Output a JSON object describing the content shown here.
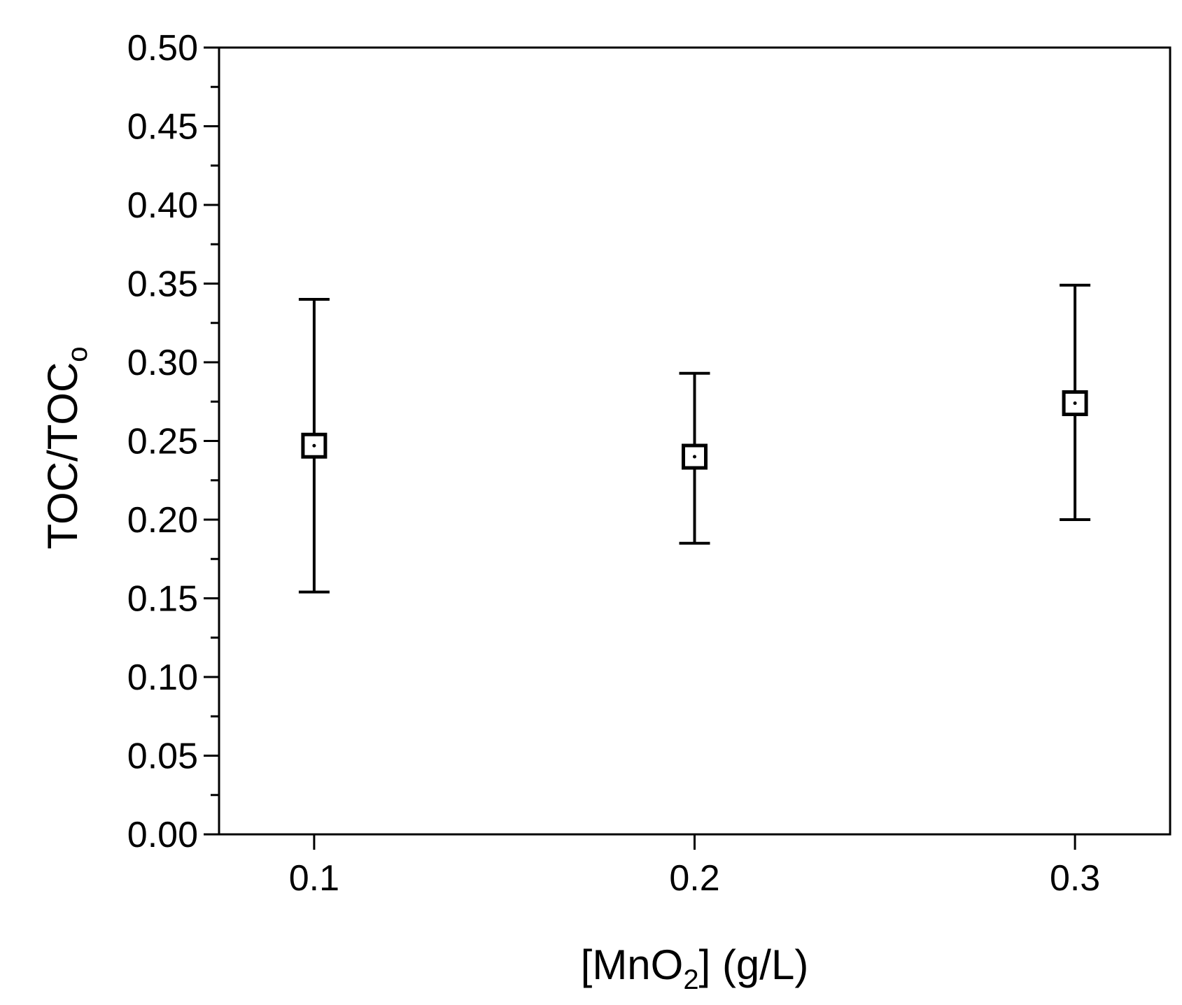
{
  "chart_data": {
    "type": "scatter",
    "title": "",
    "xlabel": {
      "main": "[MnO",
      "sub": "2",
      "rest": "] (g/L)"
    },
    "ylabel": {
      "main": "TOC/TOC",
      "sub": "o"
    },
    "x_ticks": [
      "0.1",
      "0.2",
      "0.3"
    ],
    "y_ticks": [
      "0.00",
      "0.05",
      "0.10",
      "0.15",
      "0.20",
      "0.25",
      "0.30",
      "0.35",
      "0.40",
      "0.45",
      "0.50"
    ],
    "xlim": [
      0.075,
      0.325
    ],
    "ylim": [
      0,
      0.5
    ],
    "y_minor_step": 0.025,
    "grid": false,
    "series": [
      {
        "marker": "open-square",
        "points": [
          {
            "x": 0.1,
            "y": 0.247,
            "err_low": 0.154,
            "err_high": 0.34
          },
          {
            "x": 0.2,
            "y": 0.24,
            "err_low": 0.185,
            "err_high": 0.293
          },
          {
            "x": 0.3,
            "y": 0.274,
            "err_low": 0.2,
            "err_high": 0.349
          }
        ]
      }
    ]
  }
}
